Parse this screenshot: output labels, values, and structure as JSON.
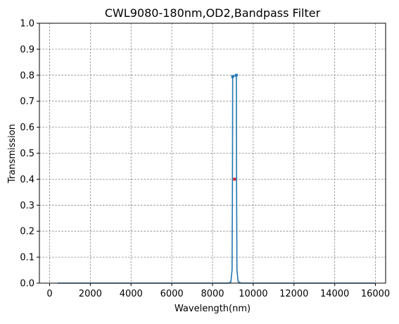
{
  "chart_data": {
    "type": "line",
    "title": "CWL9080-180nm,OD2,Bandpass Filter",
    "xlabel": "Wavelength(nm)",
    "ylabel": "Transmission",
    "xlim": [
      -500,
      16500
    ],
    "ylim": [
      0,
      1.0
    ],
    "xticks": [
      0,
      2000,
      4000,
      6000,
      8000,
      10000,
      12000,
      14000,
      16000
    ],
    "xtick_labels": [
      "0",
      "2000",
      "4000",
      "6000",
      "8000",
      "10000",
      "12000",
      "14000",
      "16000"
    ],
    "yticks": [
      0.0,
      0.1,
      0.2,
      0.3,
      0.4,
      0.5,
      0.6,
      0.7,
      0.8,
      0.9,
      1.0
    ],
    "ytick_labels": [
      "0.0",
      "0.1",
      "0.2",
      "0.3",
      "0.4",
      "0.5",
      "0.6",
      "0.7",
      "0.8",
      "0.9",
      "1.0"
    ],
    "grid": true,
    "grid_style": "dashed",
    "series": [
      {
        "color": "#1f77b4",
        "x": [
          400,
          8800,
          8900,
          8960,
          8980,
          8990,
          9170,
          9180,
          9200,
          9260,
          9400,
          16000
        ],
        "y": [
          0.0,
          0.0,
          0.005,
          0.05,
          0.4,
          0.795,
          0.8,
          0.4,
          0.05,
          0.005,
          0.0,
          0.0
        ]
      }
    ],
    "markers": [
      {
        "x": 8990,
        "y": 0.795,
        "color": "#1f77b4"
      },
      {
        "x": 9170,
        "y": 0.8,
        "color": "#1f77b4"
      },
      {
        "x": 9080,
        "y": 0.4,
        "color": "#d62728"
      }
    ]
  }
}
